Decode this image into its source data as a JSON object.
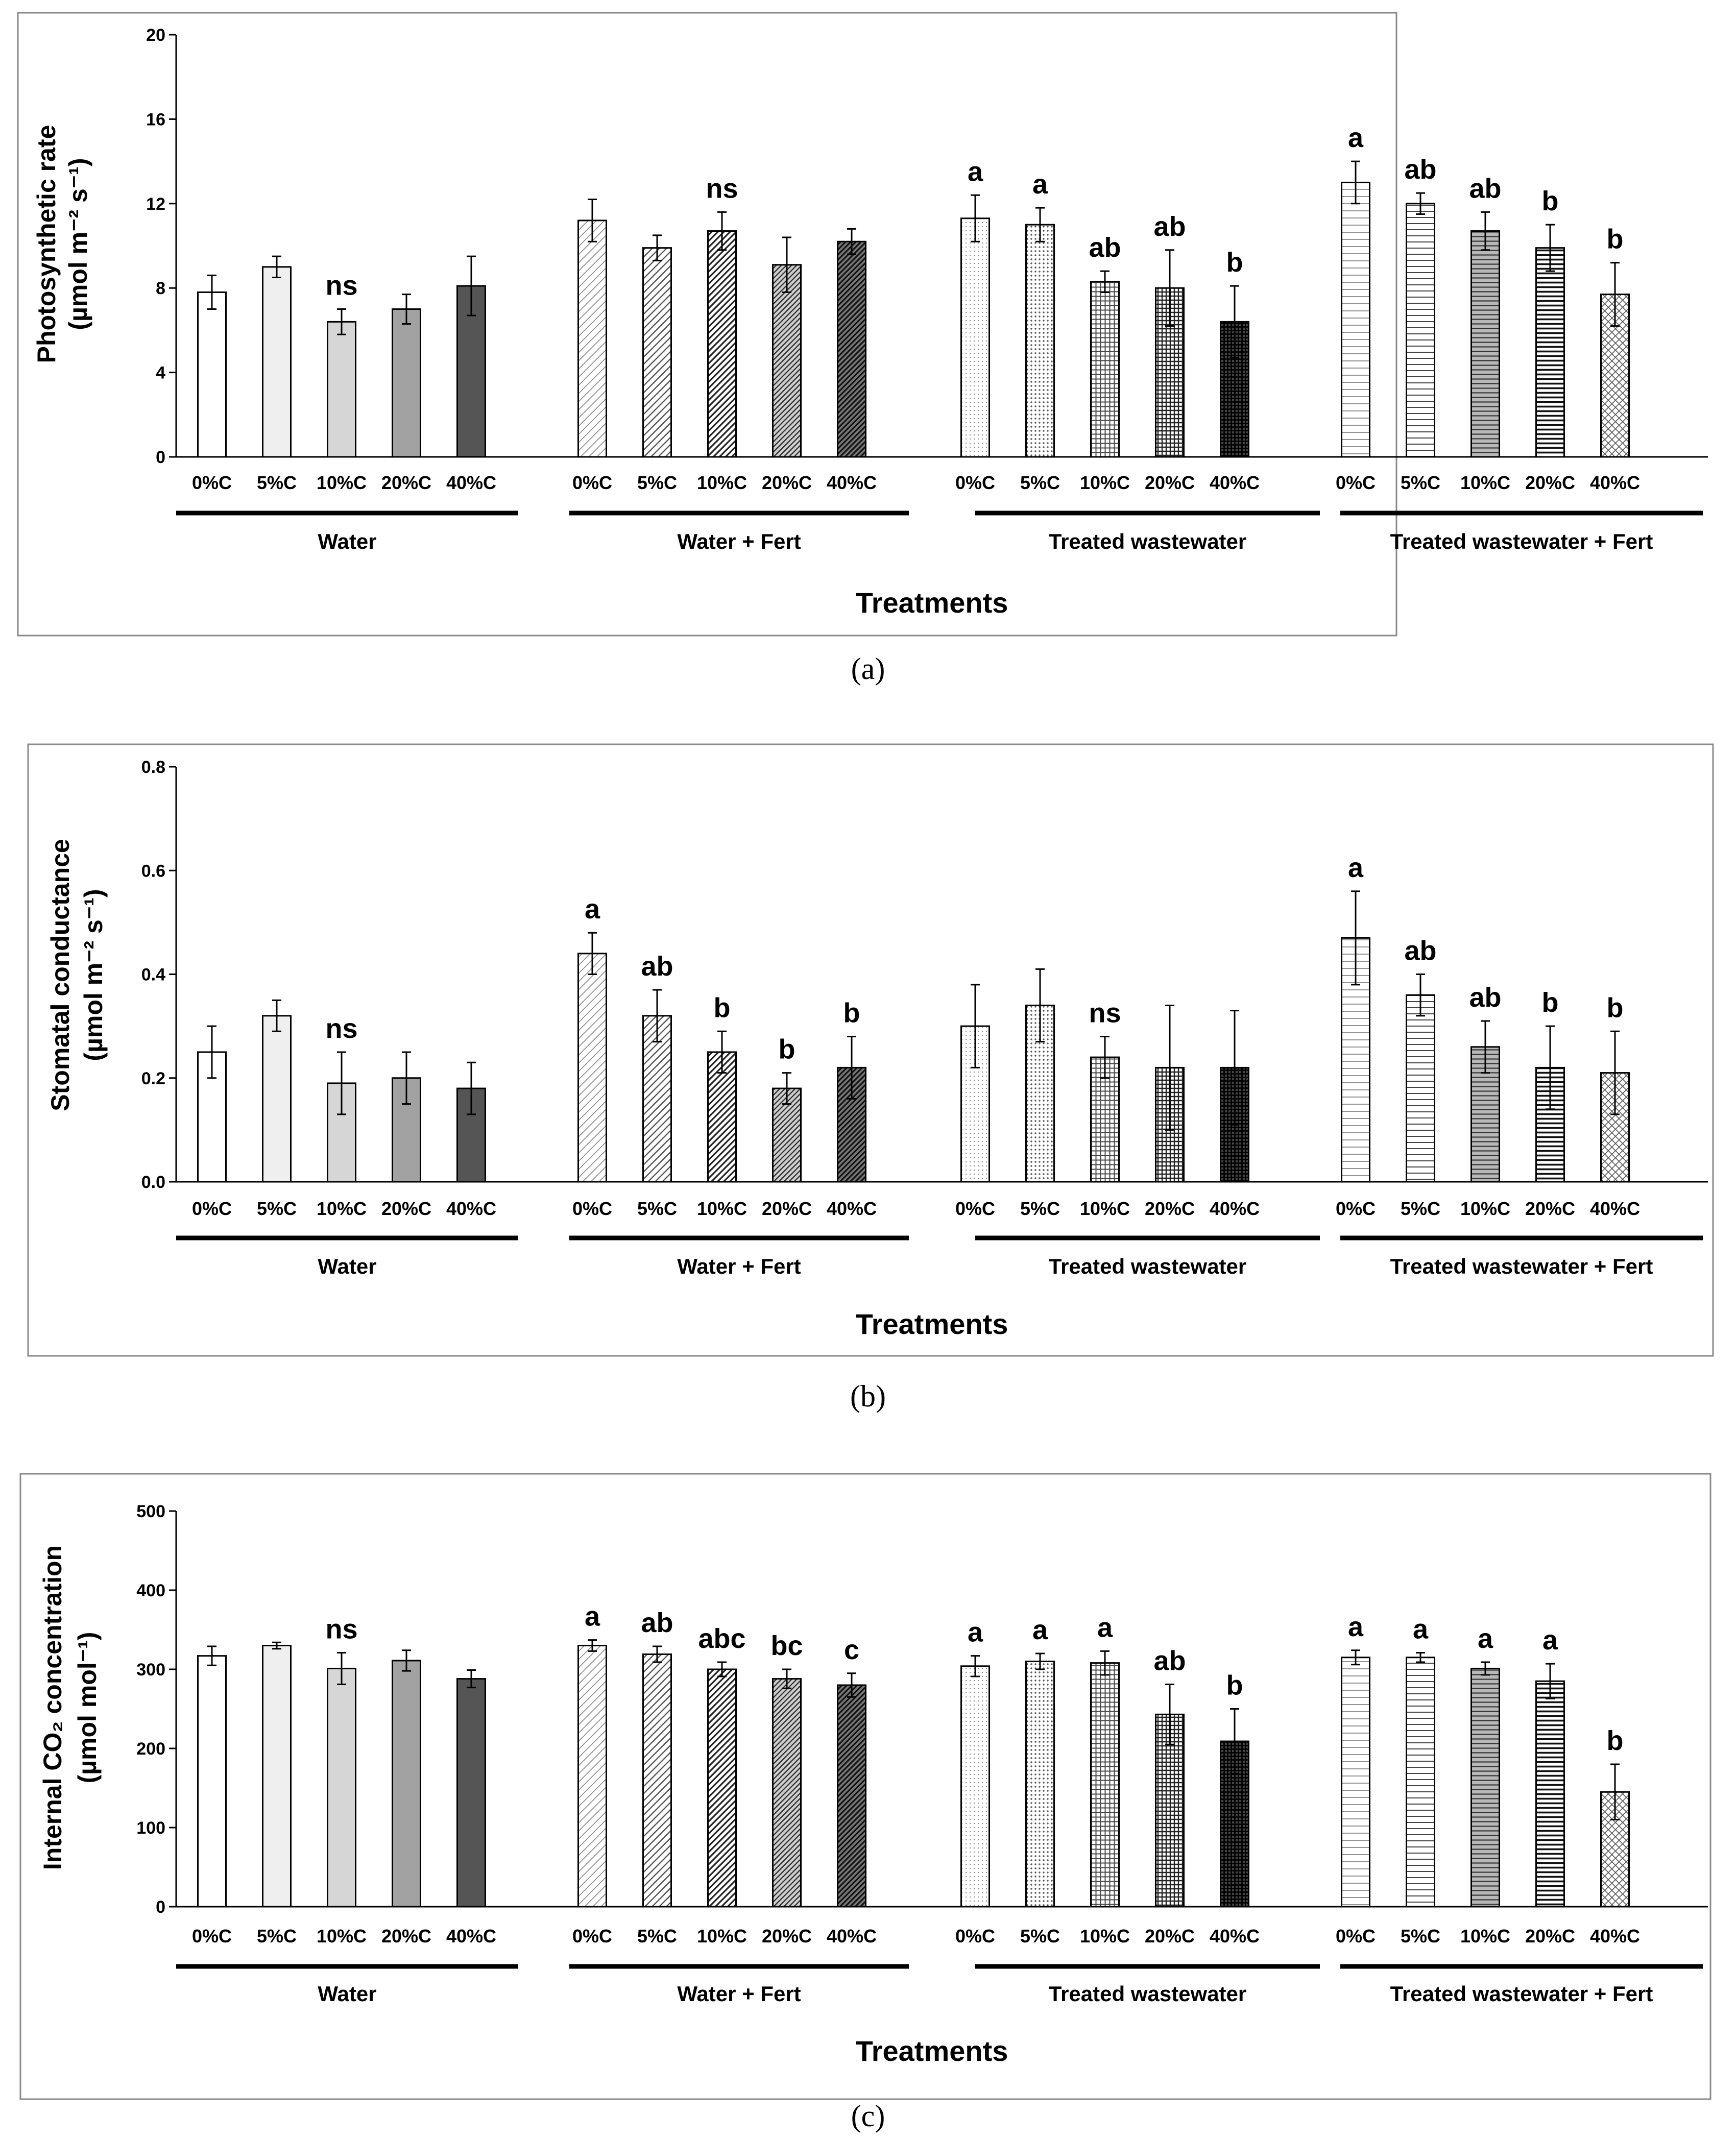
{
  "chart_data": [
    {
      "type": "bar",
      "panel_label": "(a)",
      "ylabel_line1": "Photosynthetic rate",
      "ylabel_line2": "(µmol m⁻² s⁻¹)",
      "xlabel": "Treatments",
      "ylim": [
        0,
        20
      ],
      "yticks": [
        0,
        4,
        8,
        12,
        16,
        20
      ],
      "ytick_labels": [
        "0",
        "4",
        "8",
        "12",
        "16",
        "20"
      ],
      "groups": [
        {
          "name": "Water",
          "categories": [
            "0%C",
            "5%C",
            "10%C",
            "20%C",
            "40%C"
          ],
          "values": [
            7.8,
            9.0,
            6.4,
            7.0,
            8.1
          ],
          "errors": [
            0.8,
            0.5,
            0.6,
            0.7,
            1.4
          ],
          "letters": [
            "",
            "",
            "ns",
            "",
            ""
          ]
        },
        {
          "name": "Water + Fert",
          "categories": [
            "0%C",
            "5%C",
            "10%C",
            "20%C",
            "40%C"
          ],
          "values": [
            11.2,
            9.9,
            10.7,
            9.1,
            10.2
          ],
          "errors": [
            1.0,
            0.6,
            0.9,
            1.3,
            0.6
          ],
          "letters": [
            "",
            "",
            "ns",
            "",
            ""
          ]
        },
        {
          "name": "Treated wastewater",
          "categories": [
            "0%C",
            "5%C",
            "10%C",
            "20%C",
            "40%C"
          ],
          "values": [
            11.3,
            11.0,
            8.3,
            8.0,
            6.4
          ],
          "errors": [
            1.1,
            0.8,
            0.5,
            1.8,
            1.7
          ],
          "letters": [
            "a",
            "a",
            "ab",
            "ab",
            "b"
          ]
        },
        {
          "name": "Treated wastewater + Fert",
          "categories": [
            "0%C",
            "5%C",
            "10%C",
            "20%C",
            "40%C"
          ],
          "values": [
            13.0,
            12.0,
            10.7,
            9.9,
            7.7
          ],
          "errors": [
            1.0,
            0.5,
            0.9,
            1.1,
            1.5
          ],
          "letters": [
            "a",
            "ab",
            "ab",
            "b",
            "b"
          ]
        }
      ]
    },
    {
      "type": "bar",
      "panel_label": "(b)",
      "ylabel_line1": "Stomatal conductance",
      "ylabel_line2": "(µmol m⁻² s⁻¹)",
      "xlabel": "Treatments",
      "ylim": [
        0,
        0.8
      ],
      "yticks": [
        0,
        0.2,
        0.4,
        0.6,
        0.8
      ],
      "ytick_labels": [
        "0.0",
        "0.2",
        "0.4",
        "0.6",
        "0.8"
      ],
      "groups": [
        {
          "name": "Water",
          "categories": [
            "0%C",
            "5%C",
            "10%C",
            "20%C",
            "40%C"
          ],
          "values": [
            0.25,
            0.32,
            0.19,
            0.2,
            0.18
          ],
          "errors": [
            0.05,
            0.03,
            0.06,
            0.05,
            0.05
          ],
          "letters": [
            "",
            "",
            "ns",
            "",
            ""
          ]
        },
        {
          "name": "Water + Fert",
          "categories": [
            "0%C",
            "5%C",
            "10%C",
            "20%C",
            "40%C"
          ],
          "values": [
            0.44,
            0.32,
            0.25,
            0.18,
            0.22
          ],
          "errors": [
            0.04,
            0.05,
            0.04,
            0.03,
            0.06
          ],
          "letters": [
            "a",
            "ab",
            "b",
            "b",
            "b"
          ]
        },
        {
          "name": "Treated wastewater",
          "categories": [
            "0%C",
            "5%C",
            "10%C",
            "20%C",
            "40%C"
          ],
          "values": [
            0.3,
            0.34,
            0.24,
            0.22,
            0.22
          ],
          "errors": [
            0.08,
            0.07,
            0.04,
            0.12,
            0.11
          ],
          "letters": [
            "",
            "",
            "ns",
            "",
            ""
          ]
        },
        {
          "name": "Treated wastewater + Fert",
          "categories": [
            "0%C",
            "5%C",
            "10%C",
            "20%C",
            "40%C"
          ],
          "values": [
            0.47,
            0.36,
            0.26,
            0.22,
            0.21
          ],
          "errors": [
            0.09,
            0.04,
            0.05,
            0.08,
            0.08
          ],
          "letters": [
            "a",
            "ab",
            "ab",
            "b",
            "b"
          ]
        }
      ]
    },
    {
      "type": "bar",
      "panel_label": "(c)",
      "ylabel_line1": "Internal CO₂ concentration",
      "ylabel_line2": "(µmol mol⁻¹)",
      "xlabel": "Treatments",
      "ylim": [
        0,
        500
      ],
      "yticks": [
        0,
        100,
        200,
        300,
        400,
        500
      ],
      "ytick_labels": [
        "0",
        "100",
        "200",
        "300",
        "400",
        "500"
      ],
      "groups": [
        {
          "name": "Water",
          "categories": [
            "0%C",
            "5%C",
            "10%C",
            "20%C",
            "40%C"
          ],
          "values": [
            317,
            330,
            301,
            311,
            288
          ],
          "errors": [
            12,
            4,
            20,
            13,
            11
          ],
          "letters": [
            "",
            "",
            "ns",
            "",
            ""
          ]
        },
        {
          "name": "Water + Fert",
          "categories": [
            "0%C",
            "5%C",
            "10%C",
            "20%C",
            "40%C"
          ],
          "values": [
            330,
            319,
            300,
            288,
            280
          ],
          "errors": [
            7,
            10,
            9,
            12,
            15
          ],
          "letters": [
            "a",
            "ab",
            "abc",
            "bc",
            "c"
          ]
        },
        {
          "name": "Treated wastewater",
          "categories": [
            "0%C",
            "5%C",
            "10%C",
            "20%C",
            "40%C"
          ],
          "values": [
            304,
            310,
            308,
            243,
            209
          ],
          "errors": [
            13,
            10,
            15,
            38,
            41
          ],
          "letters": [
            "a",
            "a",
            "a",
            "ab",
            "b"
          ]
        },
        {
          "name": "Treated wastewater + Fert",
          "categories": [
            "0%C",
            "5%C",
            "10%C",
            "20%C",
            "40%C"
          ],
          "values": [
            315,
            315,
            301,
            285,
            145
          ],
          "errors": [
            9,
            6,
            8,
            22,
            35
          ],
          "letters": [
            "a",
            "a",
            "a",
            "a",
            "b"
          ]
        }
      ]
    }
  ]
}
